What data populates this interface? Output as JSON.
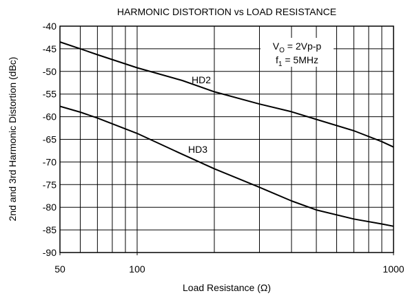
{
  "chart_data": {
    "type": "line",
    "title": "HARMONIC DISTORTION vs LOAD RESISTANCE",
    "x_label": "Load Resistance (Ω)",
    "y_label": "2nd and 3rd Harmonic Distortion (dBc)",
    "x": [
      50,
      60,
      70,
      100,
      150,
      200,
      300,
      400,
      500,
      700,
      900,
      1000
    ],
    "series": [
      {
        "name": "HD2",
        "color": "#000000",
        "values": [
          -43.5,
          -45,
          -46.3,
          -49.2,
          -52,
          -54.5,
          -57.2,
          -58.9,
          -60.6,
          -63.1,
          -65.5,
          -66.7
        ]
      },
      {
        "name": "HD3",
        "color": "#000000",
        "values": [
          -57.7,
          -59,
          -60.3,
          -63.7,
          -68.3,
          -71.5,
          -75.6,
          -78.6,
          -80.6,
          -82.6,
          -83.7,
          -84.2
        ]
      }
    ],
    "xlim": [
      50,
      1000
    ],
    "xscale": "log",
    "xticks": [
      50,
      100,
      1000
    ],
    "xgrid": [
      60,
      70,
      80,
      90,
      100,
      200,
      300,
      400,
      500,
      600,
      700,
      800,
      900
    ],
    "ylim": [
      -90,
      -40
    ],
    "yticks": [
      -40,
      -45,
      -50,
      -55,
      -60,
      -65,
      -70,
      -75,
      -80,
      -85,
      -90
    ],
    "grid": true,
    "conditions": [
      {
        "main": "V",
        "sub": "O",
        "rest": " = 2Vp-p"
      },
      {
        "main": "f",
        "sub": "1",
        "rest": " = 5MHz"
      }
    ]
  }
}
